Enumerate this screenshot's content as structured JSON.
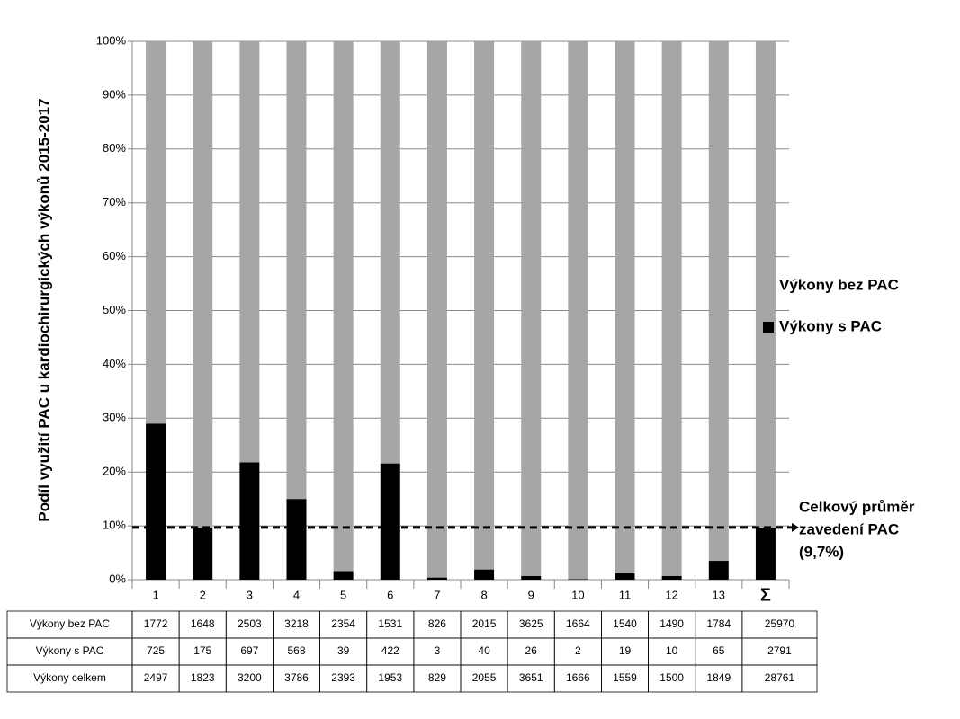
{
  "chart_data": {
    "type": "stacked_bar",
    "y_label": "Podíl využití PAC u kardiochirurgických výkonů 2015-2017",
    "categories": [
      "1",
      "2",
      "3",
      "4",
      "5",
      "6",
      "7",
      "8",
      "9",
      "10",
      "11",
      "12",
      "13",
      "Σ"
    ],
    "series": [
      {
        "name": "Výkony s PAC",
        "color": "#000000",
        "values": [
          29.0,
          9.6,
          21.8,
          15.0,
          1.6,
          21.6,
          0.4,
          1.9,
          0.7,
          0.1,
          1.2,
          0.7,
          3.5,
          9.7
        ]
      },
      {
        "name": "Výkony bez PAC",
        "color": "#a6a6a6",
        "values": [
          71.0,
          90.4,
          78.2,
          85.0,
          98.4,
          78.4,
          99.6,
          98.1,
          99.3,
          99.9,
          98.8,
          99.3,
          96.5,
          90.3
        ]
      }
    ],
    "ylim": [
      0,
      100
    ],
    "yticks": [
      {
        "value": 0,
        "label": "0%"
      },
      {
        "value": 10,
        "label": "10%"
      },
      {
        "value": 20,
        "label": "20%"
      },
      {
        "value": 30,
        "label": "30%"
      },
      {
        "value": 40,
        "label": "40%"
      },
      {
        "value": 50,
        "label": "50%"
      },
      {
        "value": 60,
        "label": "60%"
      },
      {
        "value": 70,
        "label": "70%"
      },
      {
        "value": 80,
        "label": "80%"
      },
      {
        "value": 90,
        "label": "90%"
      },
      {
        "value": 100,
        "label": "100%"
      }
    ],
    "grid": true,
    "reference_line": {
      "value": 9.7,
      "label": [
        "Celkový průměr",
        "zavedení PAC",
        "(9,7%)"
      ]
    },
    "table": {
      "rows": [
        {
          "label": "Výkony bez PAC",
          "values": [
            1772,
            1648,
            2503,
            3218,
            2354,
            1531,
            826,
            2015,
            3625,
            1664,
            1540,
            1490,
            1784,
            25970
          ]
        },
        {
          "label": "Výkony s PAC",
          "values": [
            725,
            175,
            697,
            568,
            39,
            422,
            3,
            40,
            26,
            2,
            19,
            10,
            65,
            2791
          ]
        },
        {
          "label": "Výkony celkem",
          "values": [
            2497,
            1823,
            3200,
            3786,
            2393,
            1953,
            829,
            2055,
            3651,
            1666,
            1559,
            1500,
            1849,
            28761
          ]
        }
      ]
    }
  }
}
